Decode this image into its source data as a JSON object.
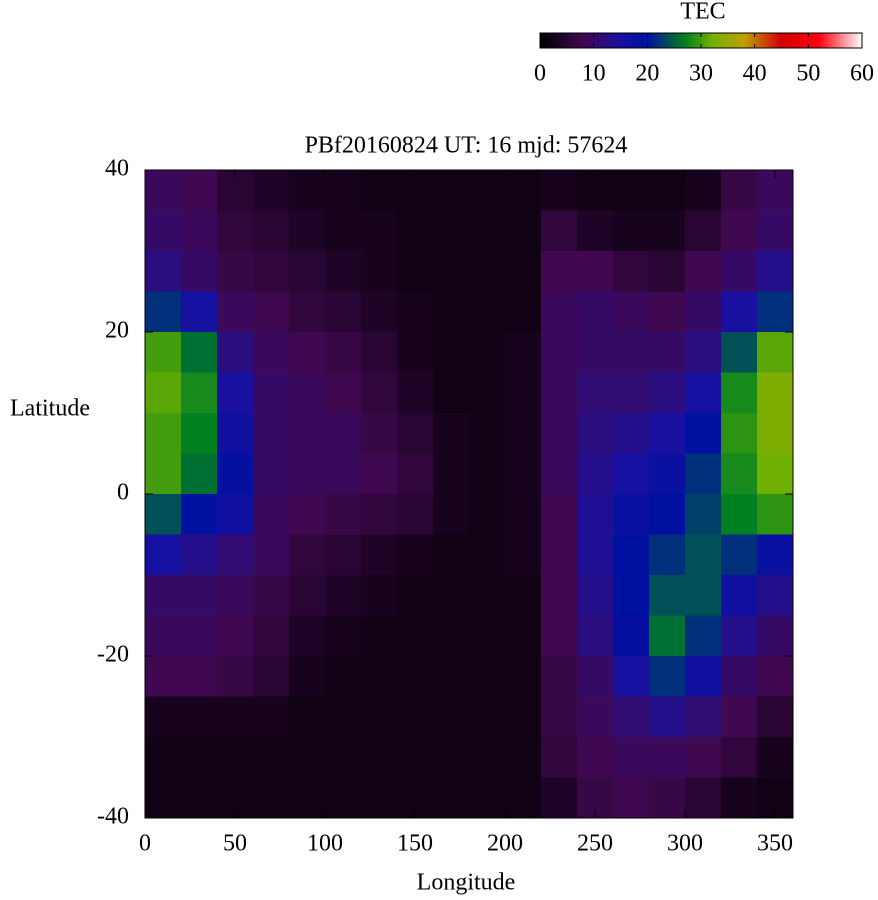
{
  "chart_data": {
    "type": "heatmap",
    "title": "PBf20160824  UT: 16  mjd: 57624",
    "x_label": "Longitude",
    "y_label": "Latitude",
    "colorbar_label": "TEC",
    "x": [
      10,
      30,
      50,
      70,
      90,
      110,
      130,
      150,
      170,
      190,
      210,
      230,
      250,
      270,
      290,
      310,
      330,
      350
    ],
    "y": [
      37.5,
      32.5,
      27.5,
      22.5,
      17.5,
      12.5,
      7.5,
      2.5,
      -2.5,
      -7.5,
      -12.5,
      -17.5,
      -22.5,
      -27.5,
      -32.5,
      -37.5
    ],
    "z": [
      [
        9,
        8,
        5,
        4,
        3,
        3,
        2,
        2,
        2,
        2,
        2,
        3,
        2,
        2,
        2,
        3,
        7,
        9
      ],
      [
        10,
        9,
        6,
        5,
        4,
        3,
        3,
        2,
        2,
        2,
        2,
        6,
        4,
        3,
        3,
        5,
        8,
        10
      ],
      [
        12,
        10,
        7,
        6,
        5,
        4,
        3,
        2,
        2,
        2,
        2,
        8,
        8,
        6,
        5,
        8,
        10,
        13
      ],
      [
        22,
        16,
        9,
        8,
        6,
        5,
        4,
        3,
        2,
        2,
        2,
        9,
        10,
        9,
        8,
        10,
        15,
        22
      ],
      [
        30,
        26,
        12,
        9,
        8,
        7,
        5,
        3,
        2,
        2,
        3,
        9,
        10,
        10,
        10,
        12,
        24,
        31
      ],
      [
        31,
        28,
        15,
        10,
        9,
        8,
        6,
        4,
        2,
        2,
        3,
        9,
        11,
        11,
        12,
        16,
        28,
        33
      ],
      [
        30,
        27,
        17,
        10,
        9,
        9,
        7,
        5,
        3,
        2,
        3,
        9,
        12,
        13,
        15,
        20,
        29,
        33
      ],
      [
        30,
        26,
        19,
        10,
        9,
        9,
        8,
        6,
        3,
        2,
        3,
        9,
        13,
        16,
        18,
        22,
        28,
        32
      ],
      [
        24,
        20,
        17,
        9,
        8,
        7,
        6,
        5,
        3,
        2,
        3,
        8,
        14,
        18,
        20,
        23,
        27,
        29
      ],
      [
        16,
        13,
        11,
        9,
        6,
        5,
        4,
        3,
        2,
        2,
        3,
        8,
        14,
        20,
        22,
        24,
        22,
        18
      ],
      [
        10,
        10,
        9,
        7,
        5,
        4,
        3,
        2,
        2,
        2,
        2,
        8,
        13,
        20,
        24,
        24,
        17,
        13
      ],
      [
        9,
        9,
        8,
        6,
        4,
        3,
        2,
        2,
        2,
        2,
        2,
        8,
        12,
        19,
        26,
        22,
        13,
        10
      ],
      [
        8,
        8,
        7,
        5,
        3,
        2,
        2,
        2,
        2,
        2,
        2,
        7,
        10,
        16,
        22,
        17,
        10,
        8
      ],
      [
        3,
        3,
        3,
        3,
        2,
        2,
        2,
        2,
        2,
        2,
        2,
        7,
        9,
        11,
        13,
        11,
        8,
        5
      ],
      [
        2,
        2,
        2,
        2,
        2,
        2,
        2,
        2,
        2,
        2,
        2,
        6,
        8,
        9,
        9,
        8,
        6,
        3
      ],
      [
        2,
        2,
        2,
        2,
        2,
        2,
        2,
        2,
        2,
        2,
        2,
        4,
        7,
        8,
        7,
        5,
        3,
        2
      ]
    ],
    "xlim": [
      0,
      360
    ],
    "xticks": [
      0,
      50,
      100,
      150,
      200,
      250,
      300,
      350
    ],
    "ylim": [
      -40,
      40
    ],
    "yticks": [
      -40,
      -20,
      0,
      20,
      40
    ],
    "zlim": [
      0,
      60
    ],
    "zticks": [
      0,
      10,
      20,
      30,
      40,
      50,
      60
    ],
    "colorscale": [
      [
        0,
        "#000000"
      ],
      [
        8,
        "#400850"
      ],
      [
        15,
        "#1a10a0"
      ],
      [
        20,
        "#0010a0"
      ],
      [
        27,
        "#008020"
      ],
      [
        32,
        "#70b000"
      ],
      [
        38,
        "#c0a000"
      ],
      [
        45,
        "#d00000"
      ],
      [
        52,
        "#ff0010"
      ],
      [
        60,
        "#ffffff"
      ]
    ]
  }
}
